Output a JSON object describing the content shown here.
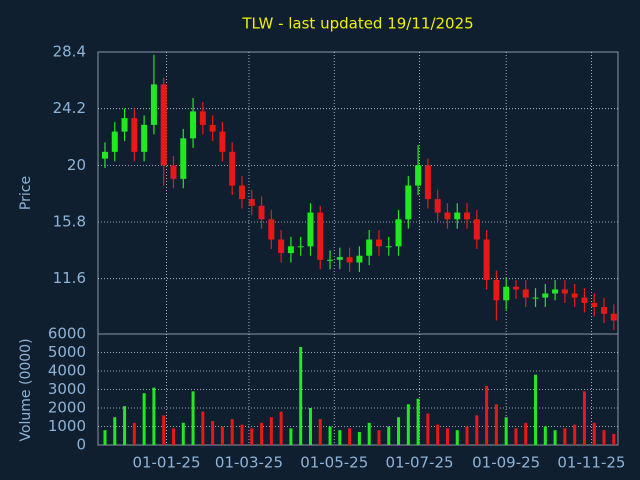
{
  "chart_data": {
    "type": "candlestick",
    "title": "TLW - last updated 19/11/2025",
    "ylabel": "Price",
    "volume_label": "Volume (0000)",
    "up_color": "#22e822",
    "down_color": "#e81818",
    "grid": true,
    "x": [
      "2024-11-18",
      "2024-11-25",
      "2024-12-02",
      "2024-12-09",
      "2024-12-16",
      "2024-12-23",
      "2024-12-30",
      "2025-01-06",
      "2025-01-13",
      "2025-01-20",
      "2025-01-27",
      "2025-02-03",
      "2025-02-10",
      "2025-02-17",
      "2025-02-24",
      "2025-03-03",
      "2025-03-10",
      "2025-03-17",
      "2025-03-24",
      "2025-03-31",
      "2025-04-07",
      "2025-04-14",
      "2025-04-21",
      "2025-04-28",
      "2025-05-05",
      "2025-05-12",
      "2025-05-19",
      "2025-05-26",
      "2025-06-02",
      "2025-06-09",
      "2025-06-16",
      "2025-06-23",
      "2025-06-30",
      "2025-07-07",
      "2025-07-14",
      "2025-07-21",
      "2025-07-28",
      "2025-08-04",
      "2025-08-11",
      "2025-08-18",
      "2025-08-25",
      "2025-09-01",
      "2025-09-08",
      "2025-09-15",
      "2025-09-22",
      "2025-09-29",
      "2025-10-06",
      "2025-10-13",
      "2025-10-20",
      "2025-10-27",
      "2025-11-03",
      "2025-11-10",
      "2025-11-17"
    ],
    "open": [
      20.5,
      21,
      22.5,
      23.5,
      21,
      23,
      26,
      20,
      19,
      22,
      24,
      23,
      22.5,
      21,
      18.5,
      17.5,
      17,
      16,
      14.5,
      13.5,
      14,
      14,
      16.5,
      13,
      13,
      13.2,
      12.8,
      13.3,
      14.5,
      14,
      14,
      16,
      18.5,
      20,
      17.5,
      16.5,
      16,
      16.5,
      16,
      14.5,
      11.5,
      10,
      11,
      10.8,
      10.2,
      10.2,
      10.5,
      10.8,
      10.5,
      10.2,
      9.8,
      9.5,
      9
    ],
    "high": [
      21.7,
      23.2,
      24.2,
      24.2,
      23.7,
      28.2,
      26.5,
      20.7,
      22.7,
      25,
      24.7,
      23.7,
      23.2,
      21.7,
      19.2,
      18.2,
      17.7,
      16.7,
      15.2,
      14.7,
      14.7,
      17.2,
      17,
      13.7,
      13.9,
      13.9,
      14,
      15.2,
      15.2,
      14.7,
      16.7,
      19.2,
      21.5,
      20.5,
      18.2,
      17.2,
      17.2,
      17.2,
      16.7,
      15.2,
      12.2,
      11.7,
      11.5,
      11.5,
      10.9,
      11.2,
      11.5,
      11.5,
      11.2,
      10.9,
      10.5,
      10.2,
      9.7
    ],
    "low": [
      19.8,
      20.3,
      21.8,
      20.3,
      20.3,
      22.3,
      18.5,
      18.3,
      18.3,
      21.3,
      22.3,
      21.8,
      20.3,
      17.8,
      16.8,
      16.3,
      15.3,
      13.8,
      12.8,
      12.8,
      13.3,
      13.3,
      12.3,
      12.3,
      12.3,
      12.1,
      12.1,
      12.6,
      13.3,
      13.3,
      13.3,
      15.3,
      17.8,
      16.8,
      15.8,
      15.3,
      15.3,
      15.3,
      13.8,
      10.8,
      8.5,
      9.3,
      10.1,
      9.5,
      9.5,
      9.5,
      10,
      9.8,
      9.5,
      9.1,
      8.8,
      8.3,
      7.8
    ],
    "close": [
      21,
      22.5,
      23.5,
      21,
      23,
      26,
      20,
      19,
      22,
      24,
      23,
      22.5,
      21,
      18.5,
      17.5,
      17,
      16,
      14.5,
      13.5,
      14,
      14,
      16.5,
      13,
      13,
      13.2,
      12.8,
      13.3,
      14.5,
      14,
      14,
      16,
      18.5,
      20,
      17.5,
      16.5,
      16,
      16.5,
      16,
      14.5,
      11.5,
      10,
      11,
      10.8,
      10.2,
      10.2,
      10.5,
      10.8,
      10.5,
      10.2,
      9.8,
      9.5,
      9,
      8.5
    ],
    "volume": [
      800,
      1500,
      2100,
      1200,
      2800,
      3100,
      1600,
      900,
      1200,
      2900,
      1800,
      1300,
      1000,
      1400,
      1100,
      900,
      1200,
      1500,
      1800,
      900,
      5300,
      2000,
      1400,
      1000,
      800,
      900,
      700,
      1200,
      800,
      1000,
      1500,
      2200,
      2500,
      1700,
      1100,
      900,
      800,
      1000,
      1600,
      3200,
      2200,
      1500,
      900,
      1200,
      3800,
      1000,
      800,
      900,
      1100,
      2900,
      1200,
      800,
      600
    ],
    "xlim": [
      "2024-11-13",
      "2025-11-20"
    ],
    "xticks": [
      {
        "value": "2025-01-01",
        "label": "01-01-25"
      },
      {
        "value": "2025-03-01",
        "label": "01-03-25"
      },
      {
        "value": "2025-05-01",
        "label": "01-05-25"
      },
      {
        "value": "2025-07-01",
        "label": "01-07-25"
      },
      {
        "value": "2025-09-01",
        "label": "01-09-25"
      },
      {
        "value": "2025-11-01",
        "label": "01-11-25"
      }
    ],
    "ylim": [
      7.5,
      28.4
    ],
    "yticks": [
      28.4,
      24.2,
      20,
      15.8,
      11.6
    ],
    "volume_ylim": [
      0,
      6000
    ],
    "volume_yticks": [
      0,
      1000,
      2000,
      3000,
      4000,
      5000,
      6000
    ]
  }
}
